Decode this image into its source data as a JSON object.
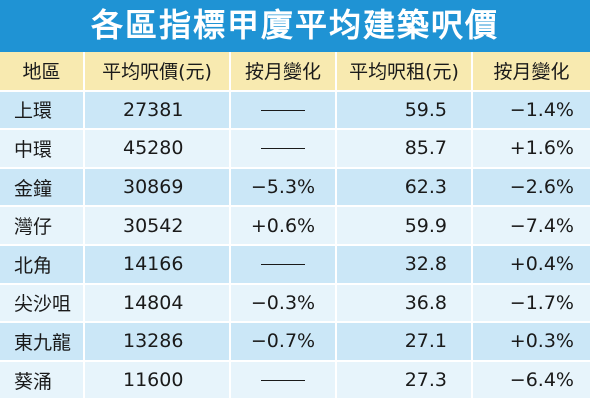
{
  "title": "各區指標甲廈平均建築呎價",
  "columns": [
    "地區",
    "平均呎價(元)",
    "按月變化",
    "平均呎租(元)",
    "按月變化"
  ],
  "rows": [
    [
      "上環",
      "27381",
      "",
      "59.5",
      "−1.4%"
    ],
    [
      "中環",
      "45280",
      "",
      "85.7",
      "+1.6%"
    ],
    [
      "金鐘",
      "30869",
      "−5.3%",
      "62.3",
      "−2.6%"
    ],
    [
      "灣仔",
      "30542",
      "+0.6%",
      "59.9",
      "−7.4%"
    ],
    [
      "北角",
      "14166",
      "",
      "32.8",
      "+0.4%"
    ],
    [
      "尖沙咀",
      "14804",
      "−0.3%",
      "36.8",
      "−1.7%"
    ],
    [
      "東九龍",
      "13286",
      "−0.7%",
      "27.1",
      "+0.3%"
    ],
    [
      "葵涌",
      "11600",
      "",
      "27.3",
      "−6.4%"
    ]
  ],
  "colors": {
    "title_bg": "#1f93d4",
    "header_bg": "#f8eab0",
    "row_dark": "#cbe7f7",
    "row_light": "#e7f4fb"
  }
}
